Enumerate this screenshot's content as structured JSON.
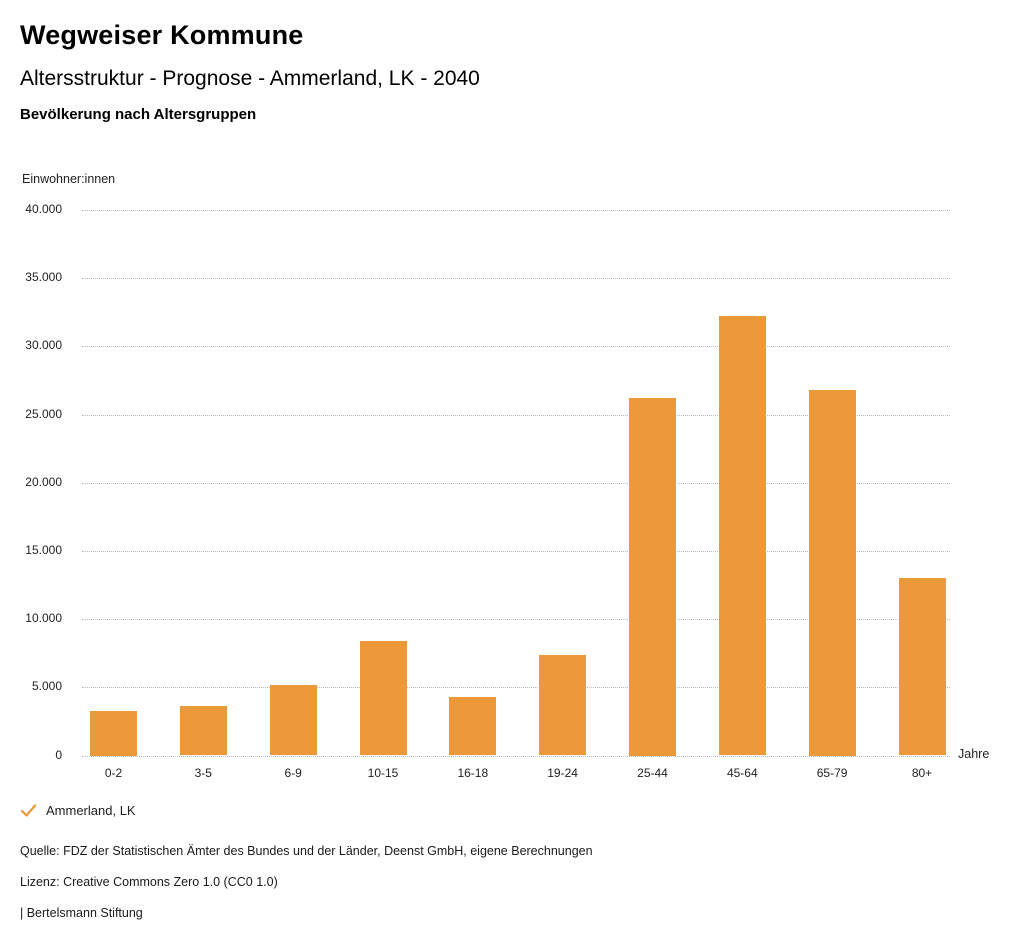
{
  "header": {
    "title": "Wegweiser Kommune",
    "subtitle": "Altersstruktur - Prognose - Ammerland, LK - 2040",
    "sub_subtitle": "Bevölkerung nach Altersgruppen"
  },
  "chart_data": {
    "type": "bar",
    "title": "Bevölkerung nach Altersgruppen",
    "xlabel": "Jahre",
    "ylabel": "Einwohner:innen",
    "categories": [
      "0-2",
      "3-5",
      "6-9",
      "10-15",
      "16-18",
      "19-24",
      "25-44",
      "45-64",
      "65-79",
      "80+"
    ],
    "series": [
      {
        "name": "Ammerland, LK",
        "values": [
          3300,
          3600,
          5150,
          8400,
          4300,
          7400,
          26250,
          32200,
          26800,
          13000
        ]
      }
    ],
    "ylim": [
      0,
      40000
    ],
    "yticks": [
      0,
      5000,
      10000,
      15000,
      20000,
      25000,
      30000,
      35000,
      40000
    ],
    "ytick_labels": [
      "0",
      "5.000",
      "10.000",
      "15.000",
      "20.000",
      "25.000",
      "30.000",
      "35.000",
      "40.000"
    ],
    "grid": "horizontal-dotted",
    "legend_position": "bottom-left",
    "bar_color": "#EC9939"
  },
  "legend": {
    "check_icon": "checkmark",
    "label": "Ammerland, LK",
    "accent_color": "#EC9939"
  },
  "footer": {
    "quelle": "Quelle: FDZ der Statistischen Ämter des Bundes und der Länder, Deenst GmbH, eigene Berechnungen",
    "lizenz": "Lizenz: Creative Commons Zero 1.0 (CC0 1.0)",
    "brand": "| Bertelsmann Stiftung"
  }
}
